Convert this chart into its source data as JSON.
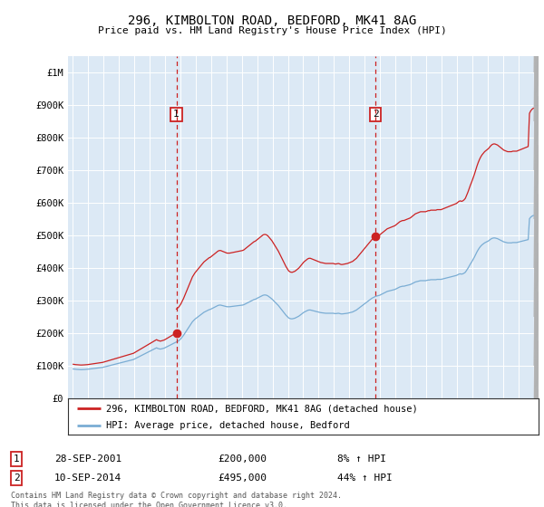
{
  "title": "296, KIMBOLTON ROAD, BEDFORD, MK41 8AG",
  "subtitle": "Price paid vs. HM Land Registry's House Price Index (HPI)",
  "background_color": "#dce9f5",
  "plot_bg_color": "#dce9f5",
  "ylabel_values": [
    "£0",
    "£100K",
    "£200K",
    "£300K",
    "£400K",
    "£500K",
    "£600K",
    "£700K",
    "£800K",
    "£900K",
    "£1M"
  ],
  "ylim": [
    0,
    1050000
  ],
  "xlim_start": 1994.7,
  "xlim_end": 2025.3,
  "hpi_line_color": "#7aadd4",
  "price_line_color": "#cc2222",
  "marker1_date": 2001.75,
  "marker1_price": 200000,
  "marker2_date": 2014.7,
  "marker2_price": 495000,
  "legend_line1": "296, KIMBOLTON ROAD, BEDFORD, MK41 8AG (detached house)",
  "legend_line2": "HPI: Average price, detached house, Bedford",
  "annotation1_date": "28-SEP-2001",
  "annotation1_price": "£200,000",
  "annotation1_hpi": "8% ↑ HPI",
  "annotation2_date": "10-SEP-2014",
  "annotation2_price": "£495,000",
  "annotation2_hpi": "44% ↑ HPI",
  "footer": "Contains HM Land Registry data © Crown copyright and database right 2024.\nThis data is licensed under the Open Government Licence v3.0.",
  "hpi_data": {
    "1995-01": 89000,
    "1995-02": 88500,
    "1995-03": 88000,
    "1995-04": 87800,
    "1995-05": 87500,
    "1995-06": 87200,
    "1995-07": 87000,
    "1995-08": 87100,
    "1995-09": 87300,
    "1995-10": 87500,
    "1995-11": 87800,
    "1995-12": 88000,
    "1996-01": 88500,
    "1996-02": 89000,
    "1996-03": 89500,
    "1996-04": 90000,
    "1996-05": 90500,
    "1996-06": 91000,
    "1996-07": 91500,
    "1996-08": 92000,
    "1996-09": 92500,
    "1996-10": 93000,
    "1996-11": 93500,
    "1996-12": 94000,
    "1997-01": 95000,
    "1997-02": 96000,
    "1997-03": 97000,
    "1997-04": 98000,
    "1997-05": 99000,
    "1997-06": 100000,
    "1997-07": 101000,
    "1997-08": 102000,
    "1997-09": 103000,
    "1997-10": 104000,
    "1997-11": 105000,
    "1997-12": 106000,
    "1998-01": 107000,
    "1998-02": 108000,
    "1998-03": 109000,
    "1998-04": 110000,
    "1998-05": 111000,
    "1998-06": 112000,
    "1998-07": 113000,
    "1998-08": 114000,
    "1998-09": 115000,
    "1998-10": 116000,
    "1998-11": 117000,
    "1998-12": 118000,
    "1999-01": 120000,
    "1999-02": 122000,
    "1999-03": 124000,
    "1999-04": 126000,
    "1999-05": 128000,
    "1999-06": 130000,
    "1999-07": 132000,
    "1999-08": 134000,
    "1999-09": 136000,
    "1999-10": 138000,
    "1999-11": 140000,
    "1999-12": 142000,
    "2000-01": 144000,
    "2000-02": 146000,
    "2000-03": 148000,
    "2000-04": 150000,
    "2000-05": 152000,
    "2000-06": 154000,
    "2000-07": 152000,
    "2000-08": 151000,
    "2000-09": 150000,
    "2000-10": 151000,
    "2000-11": 152000,
    "2000-12": 153000,
    "2001-01": 155000,
    "2001-02": 157000,
    "2001-03": 159000,
    "2001-04": 161000,
    "2001-05": 163000,
    "2001-06": 165000,
    "2001-07": 167000,
    "2001-08": 169000,
    "2001-09": 171000,
    "2001-10": 173000,
    "2001-11": 175000,
    "2001-12": 178000,
    "2002-01": 182000,
    "2002-02": 187000,
    "2002-03": 192000,
    "2002-04": 198000,
    "2002-05": 204000,
    "2002-06": 210000,
    "2002-07": 216000,
    "2002-08": 222000,
    "2002-09": 228000,
    "2002-10": 234000,
    "2002-11": 238000,
    "2002-12": 242000,
    "2003-01": 245000,
    "2003-02": 248000,
    "2003-03": 251000,
    "2003-04": 254000,
    "2003-05": 257000,
    "2003-06": 260000,
    "2003-07": 263000,
    "2003-08": 265000,
    "2003-09": 267000,
    "2003-10": 269000,
    "2003-11": 271000,
    "2003-12": 272000,
    "2004-01": 274000,
    "2004-02": 276000,
    "2004-03": 278000,
    "2004-04": 280000,
    "2004-05": 282000,
    "2004-06": 284000,
    "2004-07": 285000,
    "2004-08": 285000,
    "2004-09": 284000,
    "2004-10": 283000,
    "2004-11": 282000,
    "2004-12": 281000,
    "2005-01": 280000,
    "2005-02": 280000,
    "2005-03": 280000,
    "2005-04": 280500,
    "2005-05": 281000,
    "2005-06": 281500,
    "2005-07": 282000,
    "2005-08": 282500,
    "2005-09": 283000,
    "2005-10": 283500,
    "2005-11": 284000,
    "2005-12": 284500,
    "2006-01": 285000,
    "2006-02": 286000,
    "2006-03": 288000,
    "2006-04": 290000,
    "2006-05": 292000,
    "2006-06": 294000,
    "2006-07": 296000,
    "2006-08": 298000,
    "2006-09": 300000,
    "2006-10": 302000,
    "2006-11": 303000,
    "2006-12": 305000,
    "2007-01": 307000,
    "2007-02": 309000,
    "2007-03": 311000,
    "2007-04": 313000,
    "2007-05": 315000,
    "2007-06": 316000,
    "2007-07": 316000,
    "2007-08": 315000,
    "2007-09": 313000,
    "2007-10": 310000,
    "2007-11": 307000,
    "2007-12": 304000,
    "2008-01": 300000,
    "2008-02": 296000,
    "2008-03": 292000,
    "2008-04": 288000,
    "2008-05": 284000,
    "2008-06": 279000,
    "2008-07": 274000,
    "2008-08": 269000,
    "2008-09": 264000,
    "2008-10": 259000,
    "2008-11": 254000,
    "2008-12": 250000,
    "2009-01": 246000,
    "2009-02": 244000,
    "2009-03": 243000,
    "2009-04": 243000,
    "2009-05": 244000,
    "2009-06": 245000,
    "2009-07": 247000,
    "2009-08": 249000,
    "2009-09": 251000,
    "2009-10": 254000,
    "2009-11": 257000,
    "2009-12": 260000,
    "2010-01": 263000,
    "2010-02": 265000,
    "2010-03": 267000,
    "2010-04": 269000,
    "2010-05": 270000,
    "2010-06": 270000,
    "2010-07": 269000,
    "2010-08": 268000,
    "2010-09": 267000,
    "2010-10": 266000,
    "2010-11": 265000,
    "2010-12": 264000,
    "2011-01": 263000,
    "2011-02": 262000,
    "2011-03": 261500,
    "2011-04": 261000,
    "2011-05": 260500,
    "2011-06": 260000,
    "2011-07": 260000,
    "2011-08": 260000,
    "2011-09": 260000,
    "2011-10": 260000,
    "2011-11": 260000,
    "2011-12": 260000,
    "2012-01": 259000,
    "2012-02": 259000,
    "2012-03": 259500,
    "2012-04": 260000,
    "2012-05": 259000,
    "2012-06": 258000,
    "2012-07": 258000,
    "2012-08": 258500,
    "2012-09": 259000,
    "2012-10": 259500,
    "2012-11": 260000,
    "2012-12": 261000,
    "2013-01": 262000,
    "2013-02": 263000,
    "2013-03": 264000,
    "2013-04": 266000,
    "2013-05": 268000,
    "2013-06": 270000,
    "2013-07": 273000,
    "2013-08": 276000,
    "2013-09": 279000,
    "2013-10": 282000,
    "2013-11": 285000,
    "2013-12": 288000,
    "2014-01": 291000,
    "2014-02": 294000,
    "2014-03": 297000,
    "2014-04": 300000,
    "2014-05": 303000,
    "2014-06": 306000,
    "2014-07": 308000,
    "2014-08": 310000,
    "2014-09": 312000,
    "2014-10": 313000,
    "2014-11": 314000,
    "2014-12": 315000,
    "2015-01": 317000,
    "2015-02": 319000,
    "2015-03": 321000,
    "2015-04": 323000,
    "2015-05": 325000,
    "2015-06": 327000,
    "2015-07": 328000,
    "2015-08": 329000,
    "2015-09": 330000,
    "2015-10": 331000,
    "2015-11": 332000,
    "2015-12": 333000,
    "2016-01": 335000,
    "2016-02": 337000,
    "2016-03": 339000,
    "2016-04": 341000,
    "2016-05": 342000,
    "2016-06": 343000,
    "2016-07": 343000,
    "2016-08": 344000,
    "2016-09": 345000,
    "2016-10": 346000,
    "2016-11": 347000,
    "2016-12": 348000,
    "2017-01": 350000,
    "2017-02": 352000,
    "2017-03": 354000,
    "2017-04": 356000,
    "2017-05": 357000,
    "2017-06": 358000,
    "2017-07": 359000,
    "2017-08": 360000,
    "2017-09": 360000,
    "2017-10": 360000,
    "2017-11": 360000,
    "2017-12": 360000,
    "2018-01": 361000,
    "2018-02": 362000,
    "2018-03": 362000,
    "2018-04": 363000,
    "2018-05": 363000,
    "2018-06": 363000,
    "2018-07": 363000,
    "2018-08": 363000,
    "2018-09": 364000,
    "2018-10": 364000,
    "2018-11": 364000,
    "2018-12": 364000,
    "2019-01": 365000,
    "2019-02": 366000,
    "2019-03": 367000,
    "2019-04": 368000,
    "2019-05": 369000,
    "2019-06": 370000,
    "2019-07": 371000,
    "2019-08": 372000,
    "2019-09": 373000,
    "2019-10": 374000,
    "2019-11": 375000,
    "2019-12": 376000,
    "2020-01": 378000,
    "2020-02": 380000,
    "2020-03": 381000,
    "2020-04": 380000,
    "2020-05": 381000,
    "2020-06": 383000,
    "2020-07": 386000,
    "2020-08": 392000,
    "2020-09": 398000,
    "2020-10": 405000,
    "2020-11": 412000,
    "2020-12": 418000,
    "2021-01": 425000,
    "2021-02": 432000,
    "2021-03": 440000,
    "2021-04": 448000,
    "2021-05": 455000,
    "2021-06": 461000,
    "2021-07": 466000,
    "2021-08": 470000,
    "2021-09": 473000,
    "2021-10": 476000,
    "2021-11": 478000,
    "2021-12": 480000,
    "2022-01": 482000,
    "2022-02": 485000,
    "2022-03": 488000,
    "2022-04": 490000,
    "2022-05": 491000,
    "2022-06": 491000,
    "2022-07": 490000,
    "2022-08": 489000,
    "2022-09": 487000,
    "2022-10": 485000,
    "2022-11": 483000,
    "2022-12": 481000,
    "2023-01": 479000,
    "2023-02": 478000,
    "2023-03": 477000,
    "2023-04": 476000,
    "2023-05": 476000,
    "2023-06": 476000,
    "2023-07": 476000,
    "2023-08": 477000,
    "2023-09": 477000,
    "2023-10": 477000,
    "2023-11": 477000,
    "2023-12": 478000,
    "2024-01": 479000,
    "2024-02": 480000,
    "2024-03": 481000,
    "2024-04": 482000,
    "2024-05": 483000,
    "2024-06": 484000,
    "2024-07": 485000,
    "2024-08": 486000,
    "2024-09": 550000,
    "2024-10": 555000,
    "2024-11": 558000,
    "2024-12": 560000
  }
}
